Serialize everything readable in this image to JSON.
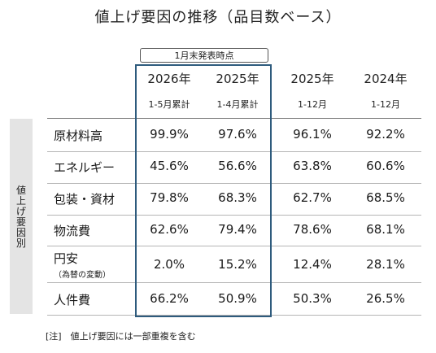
{
  "title": "値上げ要因の推移（品目数ベース）",
  "as_of_label": "1月末発表時点",
  "side_label": [
    "値",
    "上",
    "げ",
    "要",
    "因",
    "別"
  ],
  "columns": [
    {
      "year": "2026年",
      "period": "1-5月累計"
    },
    {
      "year": "2025年",
      "period": "1-4月累計"
    },
    {
      "year": "2025年",
      "period": "1-12月"
    },
    {
      "year": "2024年",
      "period": "1-12月"
    }
  ],
  "rows": [
    {
      "label": "原材料高",
      "sub": "",
      "values": [
        "99.9%",
        "97.6%",
        "96.1%",
        "92.2%"
      ]
    },
    {
      "label": "エネルギー",
      "sub": "",
      "values": [
        "45.6%",
        "56.6%",
        "63.8%",
        "60.6%"
      ]
    },
    {
      "label": "包装・資材",
      "sub": "",
      "values": [
        "79.8%",
        "68.3%",
        "62.7%",
        "68.5%"
      ]
    },
    {
      "label": "物流費",
      "sub": "",
      "values": [
        "62.6%",
        "79.4%",
        "78.6%",
        "68.1%"
      ]
    },
    {
      "label": "円安",
      "sub": "（為替の変動）",
      "values": [
        "2.0%",
        "15.2%",
        "12.4%",
        "28.1%"
      ]
    },
    {
      "label": "人件費",
      "sub": "",
      "values": [
        "66.2%",
        "50.9%",
        "50.3%",
        "26.5%"
      ]
    }
  ],
  "note": "[注]　値上げ要因には一部重複を含む",
  "colors": {
    "highlight_border": "#2e5b7d",
    "side_bg": "#e4e4e4",
    "rule": "#b5b5b5"
  }
}
